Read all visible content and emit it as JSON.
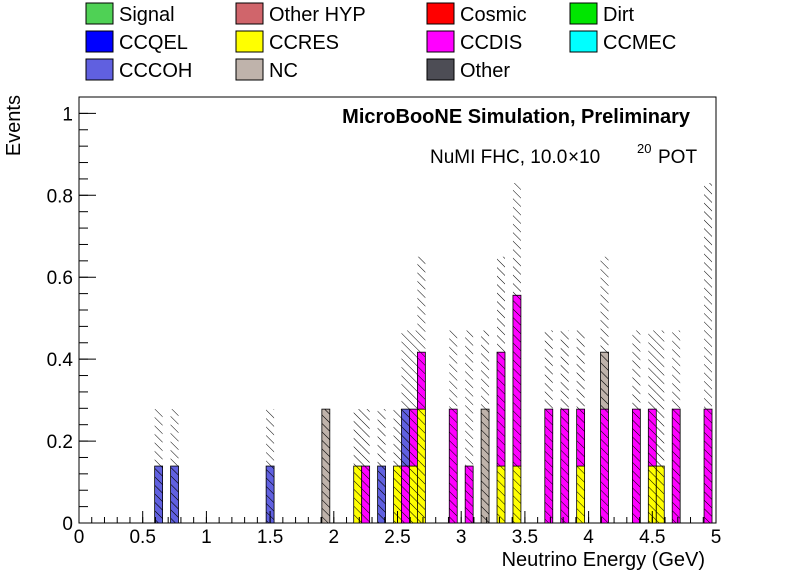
{
  "chart_data": {
    "type": "bar",
    "stacked": true,
    "title": "",
    "annotation_title": "MicroBooNE Simulation, Preliminary",
    "annotation_pot": {
      "prefix": "NuMI FHC, 10.0",
      "times": "×10",
      "exponent": "20",
      "suffix": "POT"
    },
    "xlabel": "Neutrino Energy (GeV)",
    "ylabel": "Events",
    "xlim": [
      0,
      5
    ],
    "ylim": [
      0,
      1.04
    ],
    "xticks": [
      "0",
      "0.5",
      "1",
      "1.5",
      "2",
      "2.5",
      "3",
      "3.5",
      "4",
      "4.5",
      "5"
    ],
    "yticks": [
      "0",
      "0.2",
      "0.4",
      "0.6",
      "0.8",
      "1"
    ],
    "bin_width": 0.0625,
    "legend_placement": "top, above plot",
    "legend": [
      {
        "key": "signal",
        "label": "Signal",
        "color": "#4fd155"
      },
      {
        "key": "otherhyp",
        "label": "Other HYP",
        "color": "#d0656b"
      },
      {
        "key": "cosmic",
        "label": "Cosmic",
        "color": "#ff0000"
      },
      {
        "key": "dirt",
        "label": "Dirt",
        "color": "#00e600"
      },
      {
        "key": "ccqel",
        "label": "CCQEL",
        "color": "#0000ff"
      },
      {
        "key": "ccres",
        "label": "CCRES",
        "color": "#ffff00"
      },
      {
        "key": "ccdis",
        "label": "CCDIS",
        "color": "#ff00ff"
      },
      {
        "key": "ccmec",
        "label": "CCMEC",
        "color": "#00ffff"
      },
      {
        "key": "cccoh",
        "label": "CCCOH",
        "color": "#6060e0"
      },
      {
        "key": "nc",
        "label": "NC",
        "color": "#bfb3ab"
      },
      {
        "key": "other",
        "label": "Other",
        "color": "#4d4d55"
      }
    ],
    "bins": [
      {
        "x": 0.625,
        "stack": [
          [
            "cccoh",
            0.139
          ]
        ]
      },
      {
        "x": 0.75,
        "stack": [
          [
            "cccoh",
            0.139
          ]
        ]
      },
      {
        "x": 1.5,
        "stack": [
          [
            "cccoh",
            0.139
          ]
        ]
      },
      {
        "x": 1.9375,
        "stack": [
          [
            "nc",
            0.278
          ]
        ]
      },
      {
        "x": 2.1875,
        "stack": [
          [
            "ccres",
            0.139
          ]
        ]
      },
      {
        "x": 2.25,
        "stack": [
          [
            "ccdis",
            0.139
          ]
        ]
      },
      {
        "x": 2.375,
        "stack": [
          [
            "cccoh",
            0.139
          ]
        ]
      },
      {
        "x": 2.5,
        "stack": [
          [
            "ccres",
            0.139
          ]
        ]
      },
      {
        "x": 2.5625,
        "stack": [
          [
            "ccdis",
            0.139
          ],
          [
            "cccoh",
            0.139
          ]
        ]
      },
      {
        "x": 2.625,
        "stack": [
          [
            "ccres",
            0.139
          ],
          [
            "ccdis",
            0.139
          ]
        ]
      },
      {
        "x": 2.6875,
        "stack": [
          [
            "ccres",
            0.278
          ],
          [
            "ccdis",
            0.139
          ]
        ]
      },
      {
        "x": 2.9375,
        "stack": [
          [
            "ccdis",
            0.278
          ]
        ]
      },
      {
        "x": 3.0625,
        "stack": [
          [
            "ccdis",
            0.139
          ]
        ]
      },
      {
        "x": 3.1875,
        "stack": [
          [
            "nc",
            0.278
          ]
        ]
      },
      {
        "x": 3.3125,
        "stack": [
          [
            "ccres",
            0.139
          ],
          [
            "ccdis",
            0.278
          ]
        ]
      },
      {
        "x": 3.4375,
        "stack": [
          [
            "ccres",
            0.139
          ],
          [
            "ccdis",
            0.417
          ]
        ]
      },
      {
        "x": 3.6875,
        "stack": [
          [
            "ccdis",
            0.278
          ]
        ]
      },
      {
        "x": 3.8125,
        "stack": [
          [
            "ccdis",
            0.278
          ]
        ]
      },
      {
        "x": 3.9375,
        "stack": [
          [
            "ccres",
            0.139
          ],
          [
            "ccdis",
            0.139
          ]
        ]
      },
      {
        "x": 4.125,
        "stack": [
          [
            "ccdis",
            0.278
          ],
          [
            "nc",
            0.139
          ]
        ]
      },
      {
        "x": 4.375,
        "stack": [
          [
            "ccdis",
            0.278
          ]
        ]
      },
      {
        "x": 4.5,
        "stack": [
          [
            "ccres",
            0.139
          ],
          [
            "ccdis",
            0.139
          ]
        ]
      },
      {
        "x": 4.5625,
        "stack": [
          [
            "ccres",
            0.139
          ]
        ]
      },
      {
        "x": 4.6875,
        "stack": [
          [
            "ccdis",
            0.278
          ]
        ]
      },
      {
        "x": 4.9375,
        "stack": [
          [
            "ccdis",
            0.278
          ]
        ]
      }
    ],
    "uncertainty_band": "hatched",
    "uncertainty": [
      {
        "x": 0.625,
        "lo": 0.0,
        "hi": 0.278
      },
      {
        "x": 0.75,
        "lo": 0.0,
        "hi": 0.278
      },
      {
        "x": 1.5,
        "lo": 0.0,
        "hi": 0.278
      },
      {
        "x": 1.9375,
        "lo": 0.0,
        "hi": 0.278
      },
      {
        "x": 2.1875,
        "lo": 0.0,
        "hi": 0.278
      },
      {
        "x": 2.25,
        "lo": 0.0,
        "hi": 0.278
      },
      {
        "x": 2.375,
        "lo": 0.0,
        "hi": 0.278
      },
      {
        "x": 2.5,
        "lo": 0.0,
        "hi": 0.278
      },
      {
        "x": 2.5625,
        "lo": 0.0,
        "hi": 0.47
      },
      {
        "x": 2.625,
        "lo": 0.0,
        "hi": 0.47
      },
      {
        "x": 2.6875,
        "lo": 0.0,
        "hi": 0.65
      },
      {
        "x": 2.9375,
        "lo": 0.0,
        "hi": 0.47
      },
      {
        "x": 3.0625,
        "lo": 0.0,
        "hi": 0.47
      },
      {
        "x": 3.1875,
        "lo": 0.0,
        "hi": 0.47
      },
      {
        "x": 3.3125,
        "lo": 0.0,
        "hi": 0.65
      },
      {
        "x": 3.4375,
        "lo": 0.0,
        "hi": 0.83
      },
      {
        "x": 3.6875,
        "lo": 0.0,
        "hi": 0.47
      },
      {
        "x": 3.8125,
        "lo": 0.0,
        "hi": 0.47
      },
      {
        "x": 3.9375,
        "lo": 0.0,
        "hi": 0.47
      },
      {
        "x": 4.125,
        "lo": 0.0,
        "hi": 0.65
      },
      {
        "x": 4.375,
        "lo": 0.0,
        "hi": 0.47
      },
      {
        "x": 4.5,
        "lo": 0.0,
        "hi": 0.47
      },
      {
        "x": 4.5625,
        "lo": 0.0,
        "hi": 0.47
      },
      {
        "x": 4.6875,
        "lo": 0.0,
        "hi": 0.47
      },
      {
        "x": 4.9375,
        "lo": 0.0,
        "hi": 0.83
      }
    ]
  }
}
